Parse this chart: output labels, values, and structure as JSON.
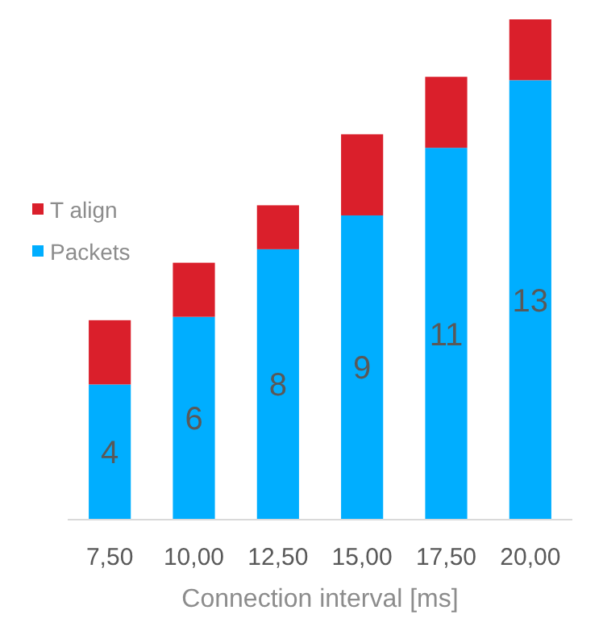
{
  "chart_data": {
    "type": "bar",
    "stacked": true,
    "xlabel": "Connection interval [ms]",
    "categories": [
      "7,50",
      "10,00",
      "12,50",
      "15,00",
      "17,50",
      "20,00"
    ],
    "legend": "left",
    "series": [
      {
        "name": "Packets",
        "color": "#00aeff",
        "values": [
          4,
          6,
          8,
          9,
          11,
          13
        ],
        "value_labels": [
          "4",
          "6",
          "8",
          "9",
          "11",
          "13"
        ]
      },
      {
        "name": "T align",
        "color": "#da1f2b",
        "values": [
          1.9,
          1.6,
          1.3,
          2.4,
          2.1,
          1.8
        ]
      }
    ]
  }
}
